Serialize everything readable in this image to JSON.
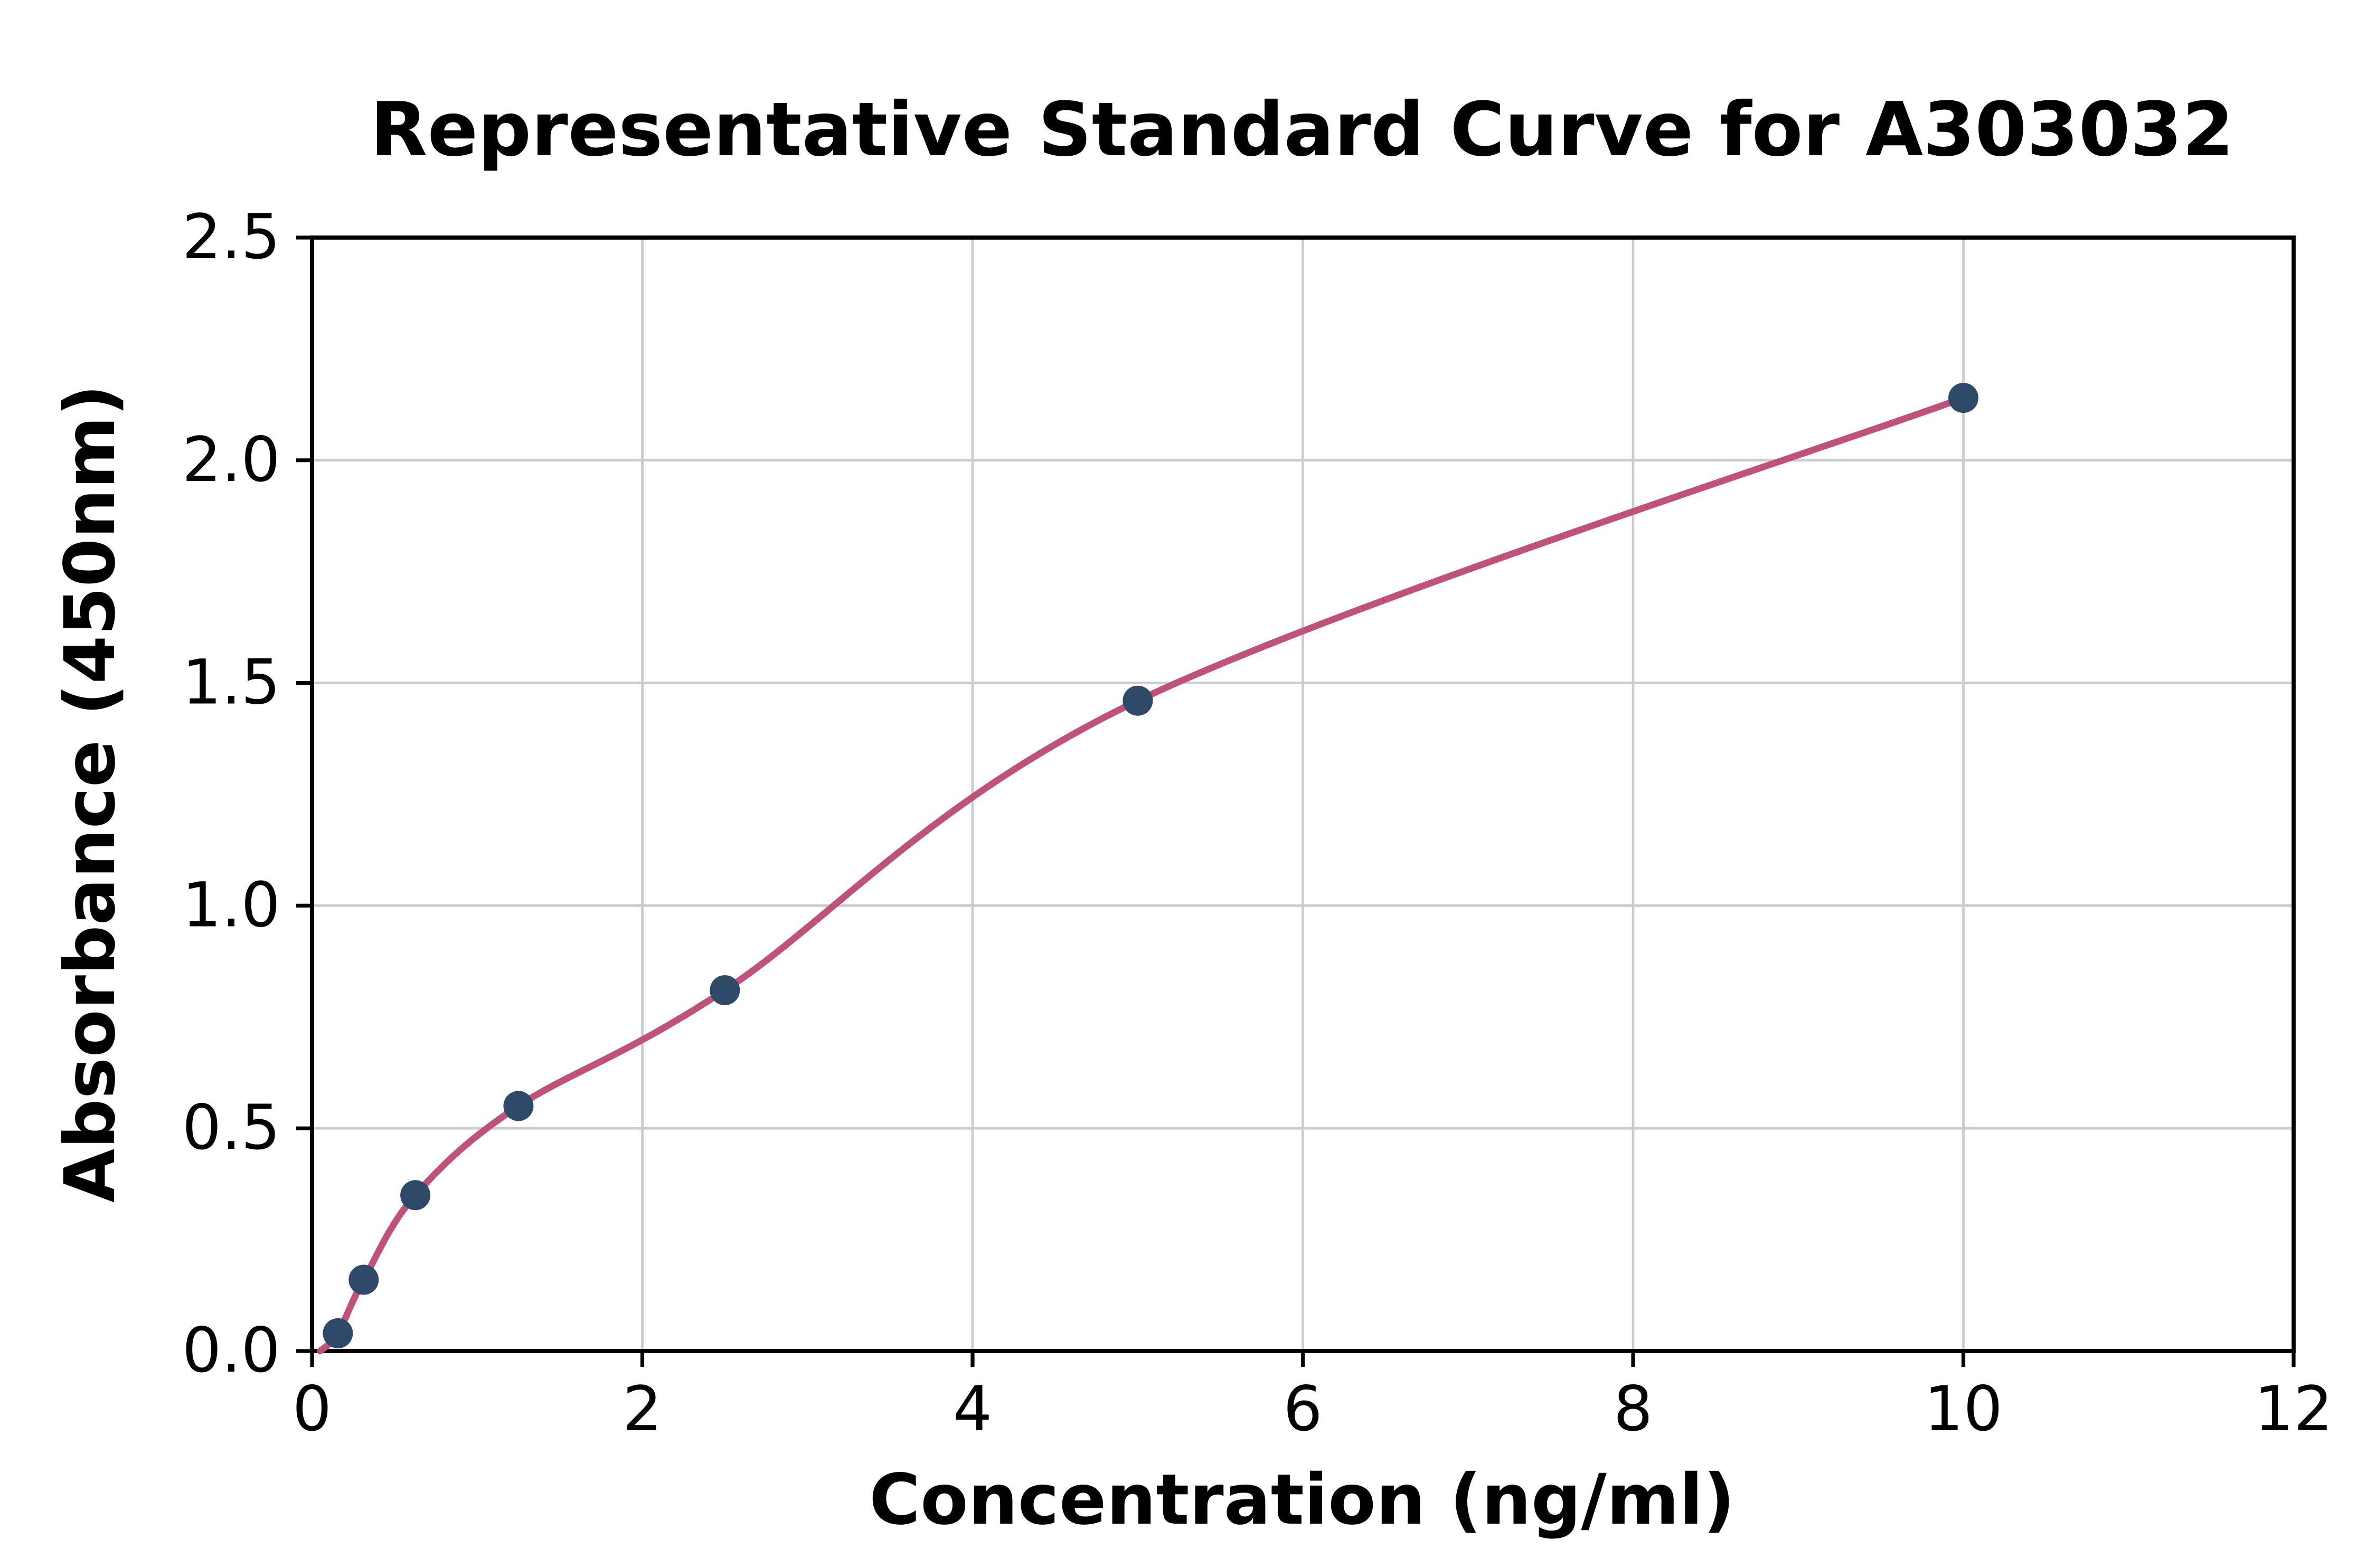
{
  "chart_data": {
    "type": "scatter",
    "title": "Representative Standard Curve for A303032",
    "xlabel": "Concentration (ng/ml)",
    "ylabel": "Absorbance (450nm)",
    "xlim": [
      0,
      12
    ],
    "ylim": [
      0,
      2.5
    ],
    "x_ticks": [
      0,
      2,
      4,
      6,
      8,
      10,
      12
    ],
    "x_tick_labels": [
      "0",
      "2",
      "4",
      "6",
      "8",
      "10",
      "12"
    ],
    "y_ticks": [
      0.0,
      0.5,
      1.0,
      1.5,
      2.0,
      2.5
    ],
    "y_tick_labels": [
      "0.0",
      "0.5",
      "1.0",
      "1.5",
      "2.0",
      "2.5"
    ],
    "grid": true,
    "legend": "none",
    "points": [
      {
        "x": 0.156,
        "y": 0.04
      },
      {
        "x": 0.313,
        "y": 0.16
      },
      {
        "x": 0.625,
        "y": 0.35
      },
      {
        "x": 1.25,
        "y": 0.55
      },
      {
        "x": 2.5,
        "y": 0.81
      },
      {
        "x": 5.0,
        "y": 1.46
      },
      {
        "x": 10.0,
        "y": 2.14
      }
    ],
    "fit_curve": {
      "style": "smooth-through-points",
      "start": {
        "x": 0.05,
        "y": 0.0
      }
    },
    "colors": {
      "point_color": "#2e4a68",
      "curve_color": "#c0517a",
      "grid_color": "#cccccc",
      "axis_color": "#000000",
      "background": "#ffffff"
    }
  }
}
